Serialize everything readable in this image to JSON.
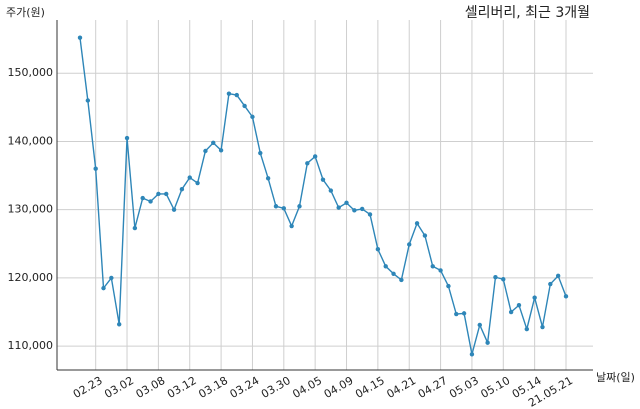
{
  "chart_data": {
    "type": "line",
    "title": "셀리버리, 최근 3개월",
    "ylabel": "주가(원)",
    "xlabel": "날짜(일)",
    "categories": [
      null,
      null,
      "02.23",
      null,
      null,
      null,
      "03.02",
      null,
      null,
      null,
      "03.08",
      null,
      null,
      null,
      "03.12",
      null,
      null,
      null,
      "03.18",
      null,
      null,
      null,
      "03.24",
      null,
      null,
      null,
      "03.30",
      null,
      null,
      null,
      "04.05",
      null,
      null,
      null,
      "04.09",
      null,
      null,
      null,
      "04.15",
      null,
      null,
      null,
      "04.21",
      null,
      null,
      null,
      "04.27",
      null,
      null,
      null,
      "05.03",
      null,
      null,
      null,
      "05.10",
      null,
      null,
      null,
      "05.14",
      null,
      null,
      null,
      "21.05.21"
    ],
    "series": [
      {
        "name": "셀리버리",
        "color": "#2e86b8",
        "values": [
          155200,
          146000,
          136000,
          118500,
          120000,
          113200,
          140500,
          127300,
          131700,
          131200,
          132300,
          132300,
          130000,
          133000,
          134700,
          133900,
          138600,
          139800,
          138700,
          147000,
          146800,
          145200,
          143600,
          138300,
          134600,
          130500,
          130200,
          127600,
          130500,
          136800,
          137800,
          134400,
          132800,
          130300,
          131000,
          129900,
          130100,
          129300,
          124200,
          121700,
          120600,
          119700,
          124900,
          128000,
          126200,
          121700,
          121100,
          118800,
          114700,
          114800,
          108800,
          113100,
          110500,
          120100,
          119800,
          115000,
          116000,
          112500,
          117100,
          112800,
          119100,
          120300,
          117300
        ]
      }
    ],
    "ylim": [
      106500,
      157800
    ],
    "yticks": [
      {
        "value": 110000,
        "label": "110,000"
      },
      {
        "value": 120000,
        "label": "120,000"
      },
      {
        "value": 130000,
        "label": "130,000"
      },
      {
        "value": 140000,
        "label": "140,000"
      },
      {
        "value": 150000,
        "label": "150,000"
      }
    ],
    "grid": true
  }
}
